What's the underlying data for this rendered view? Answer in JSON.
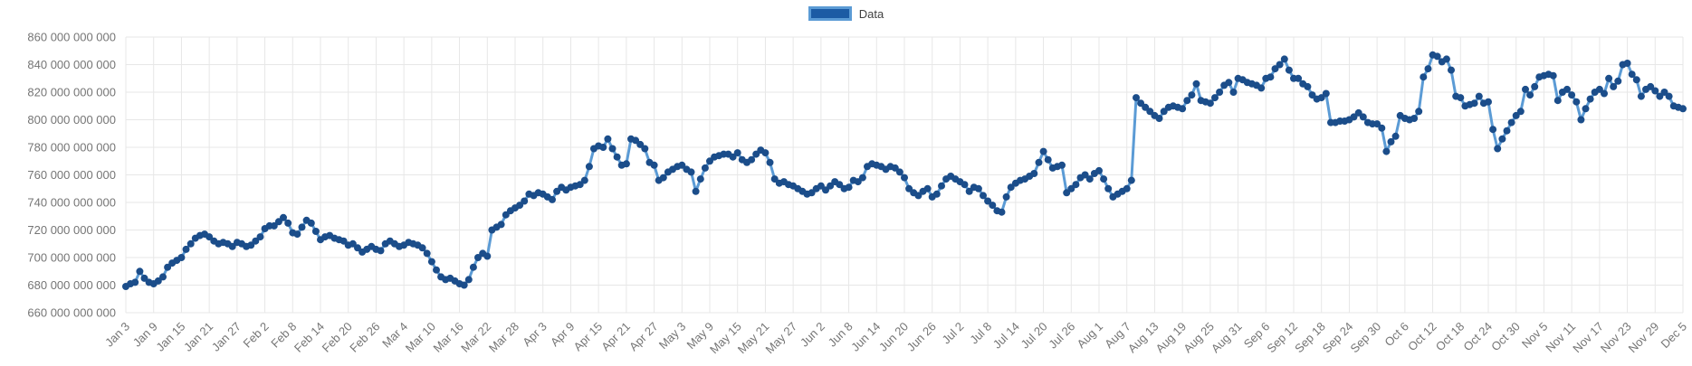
{
  "chart_data": {
    "type": "line",
    "series_name": "Data",
    "unit": "absolute values; y labels shown as billions with space separators",
    "x_start": "Jan 3",
    "x_end": "Dec 5",
    "x_frequency": "daily",
    "x_tick_every_n_points": 6,
    "x_tick_labels": [
      "Jan 3",
      "Jan 9",
      "Jan 15",
      "Jan 21",
      "Jan 27",
      "Feb 2",
      "Feb 8",
      "Feb 14",
      "Feb 20",
      "Feb 26",
      "Mar 4",
      "Mar 10",
      "Mar 16",
      "Mar 22",
      "Mar 28",
      "Apr 3",
      "Apr 9",
      "Apr 15",
      "Apr 21",
      "Apr 27",
      "May 3",
      "May 9",
      "May 15",
      "May 21",
      "May 27",
      "Jun 2",
      "Jun 8",
      "Jun 14",
      "Jun 20",
      "Jun 26",
      "Jul 2",
      "Jul 8",
      "Jul 14",
      "Jul 20",
      "Jul 26",
      "Aug 1",
      "Aug 7",
      "Aug 13",
      "Aug 19",
      "Aug 25",
      "Aug 31",
      "Sep 6",
      "Sep 12",
      "Sep 18",
      "Sep 24",
      "Sep 30",
      "Oct 6",
      "Oct 12",
      "Oct 18",
      "Oct 24",
      "Oct 30",
      "Nov 5",
      "Nov 11",
      "Nov 17",
      "Nov 23",
      "Nov 29",
      "Dec 5"
    ],
    "ylim": [
      660,
      860
    ],
    "y_tick_step": 20,
    "y_tick_label_suffix": " 000 000 000",
    "grid": true,
    "legend_position": "top-center",
    "values_billions": [
      679,
      681,
      682,
      690,
      685,
      682,
      681,
      683,
      686,
      693,
      696,
      698,
      700,
      706,
      710,
      714,
      716,
      717,
      715,
      712,
      710,
      711,
      710,
      708,
      711,
      710,
      708,
      709,
      712,
      715,
      721,
      723,
      723,
      726,
      729,
      725,
      718,
      717,
      722,
      727,
      725,
      719,
      713,
      715,
      716,
      714,
      713,
      712,
      709,
      710,
      707,
      704,
      706,
      708,
      706,
      705,
      710,
      712,
      710,
      708,
      709,
      711,
      710,
      709,
      707,
      703,
      697,
      691,
      686,
      684,
      685,
      683,
      681,
      680,
      684,
      693,
      700,
      703,
      701,
      720,
      722,
      724,
      731,
      734,
      736,
      738,
      741,
      746,
      745,
      747,
      746,
      744,
      742,
      748,
      751,
      749,
      751,
      752,
      753,
      756,
      766,
      779,
      781,
      780,
      786,
      779,
      773,
      767,
      768,
      786,
      785,
      782,
      779,
      769,
      767,
      756,
      758,
      762,
      764,
      766,
      767,
      764,
      762,
      748,
      757,
      765,
      770,
      773,
      774,
      775,
      775,
      773,
      776,
      771,
      769,
      771,
      775,
      778,
      776,
      769,
      757,
      754,
      755,
      753,
      752,
      750,
      748,
      746,
      747,
      750,
      752,
      749,
      752,
      755,
      753,
      750,
      751,
      756,
      755,
      758,
      766,
      768,
      767,
      766,
      764,
      766,
      765,
      762,
      758,
      750,
      747,
      745,
      748,
      750,
      744,
      746,
      752,
      757,
      759,
      757,
      755,
      753,
      748,
      751,
      750,
      745,
      741,
      738,
      734,
      733,
      744,
      751,
      754,
      756,
      757,
      759,
      761,
      769,
      777,
      771,
      765,
      766,
      767,
      747,
      750,
      753,
      758,
      760,
      757,
      761,
      763,
      757,
      750,
      744,
      746,
      748,
      750,
      756,
      816,
      812,
      809,
      806,
      803,
      801,
      806,
      809,
      810,
      809,
      808,
      814,
      818,
      826,
      814,
      813,
      812,
      816,
      820,
      825,
      827,
      820,
      830,
      829,
      827,
      826,
      825,
      823,
      830,
      831,
      837,
      840,
      844,
      836,
      830,
      830,
      826,
      824,
      818,
      815,
      816,
      819,
      798,
      798,
      799,
      799,
      800,
      802,
      805,
      802,
      798,
      797,
      797,
      794,
      777,
      784,
      788,
      803,
      801,
      800,
      801,
      806,
      831,
      837,
      847,
      846,
      842,
      844,
      836,
      817,
      816,
      810,
      811,
      812,
      817,
      812,
      813,
      793,
      779,
      786,
      792,
      798,
      803,
      806,
      822,
      818,
      824,
      831,
      832,
      833,
      832,
      814,
      820,
      822,
      818,
      813,
      800,
      808,
      815,
      820,
      822,
      819,
      830,
      824,
      828,
      840,
      841,
      833,
      829,
      817,
      822,
      824,
      821,
      817,
      820,
      817,
      810,
      809,
      808
    ],
    "colors": {
      "line": "#5b9bd5",
      "point": "#1b4d8a",
      "legend_fill": "#1c5ba4",
      "grid": "#e7e7e7",
      "tick_text": "#757575",
      "legend_text": "#3f3f3f"
    }
  }
}
